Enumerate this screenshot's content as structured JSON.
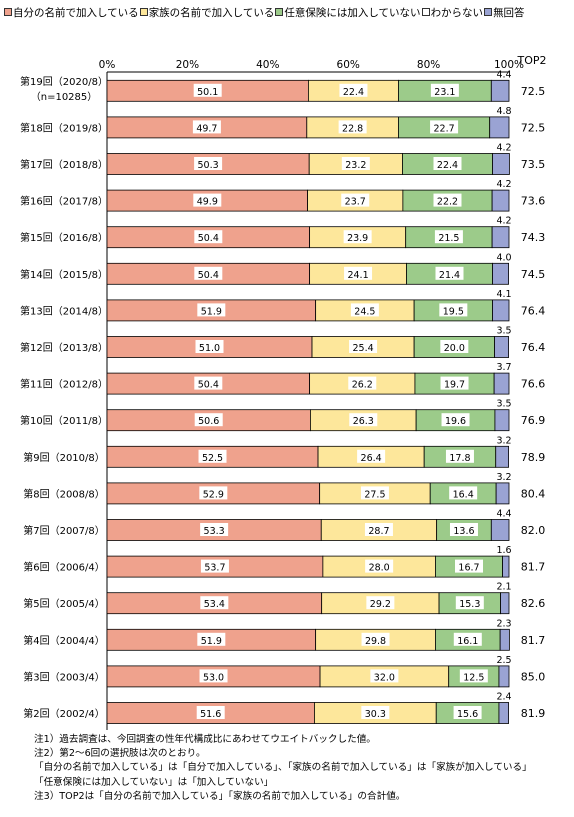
{
  "legend": [
    {
      "label": "自分の名前で加入している",
      "color": "#EFA28D"
    },
    {
      "label": "家族の名前で加入している",
      "color": "#FDE79B"
    },
    {
      "label": "任意保険には加入していない",
      "color": "#9CCB8A"
    },
    {
      "label": "わからない",
      "color": "#FFFFFF"
    },
    {
      "label": "無回答",
      "color": "#9AA3D3"
    }
  ],
  "chart_data": {
    "type": "bar",
    "orientation": "horizontal",
    "stacked": true,
    "x_ticks": [
      "0%",
      "20%",
      "40%",
      "60%",
      "80%",
      "100%"
    ],
    "xlim": [
      0,
      100
    ],
    "top2_header": "TOP2",
    "series_names": [
      "自分の名前で加入している",
      "家族の名前で加入している",
      "任意保険には加入していない",
      "わからない",
      "無回答"
    ],
    "rows": [
      {
        "label": "第19回（2020/8）",
        "sublabel": "（n=10285）",
        "values": [
          50.1,
          22.4,
          23.1,
          0.0,
          4.4
        ],
        "labels": [
          "50.1",
          "22.4",
          "23.1",
          "",
          "4.4"
        ],
        "top2": "72.5"
      },
      {
        "label": "第18回（2019/8）",
        "values": [
          49.7,
          22.8,
          22.7,
          0.0,
          4.8
        ],
        "labels": [
          "49.7",
          "22.8",
          "22.7",
          "",
          "4.8"
        ],
        "top2": "72.5"
      },
      {
        "label": "第17回（2018/8）",
        "values": [
          50.3,
          23.2,
          22.4,
          0.0,
          4.2
        ],
        "labels": [
          "50.3",
          "23.2",
          "22.4",
          "",
          "4.2"
        ],
        "top2": "73.5"
      },
      {
        "label": "第16回（2017/8）",
        "values": [
          49.9,
          23.7,
          22.2,
          0.0,
          4.2
        ],
        "labels": [
          "49.9",
          "23.7",
          "22.2",
          "",
          "4.2"
        ],
        "top2": "73.6"
      },
      {
        "label": "第15回（2016/8）",
        "values": [
          50.4,
          23.9,
          21.5,
          0.0,
          4.2
        ],
        "labels": [
          "50.4",
          "23.9",
          "21.5",
          "",
          "4.2"
        ],
        "top2": "74.3"
      },
      {
        "label": "第14回（2015/8）",
        "values": [
          50.4,
          24.1,
          21.4,
          0.0,
          4.0
        ],
        "labels": [
          "50.4",
          "24.1",
          "21.4",
          "",
          "4.0"
        ],
        "top2": "74.5"
      },
      {
        "label": "第13回（2014/8）",
        "values": [
          51.9,
          24.5,
          19.5,
          0.0,
          4.1
        ],
        "labels": [
          "51.9",
          "24.5",
          "19.5",
          "",
          "4.1"
        ],
        "top2": "76.4"
      },
      {
        "label": "第12回（2013/8）",
        "values": [
          51.0,
          25.4,
          20.0,
          0.0,
          3.5
        ],
        "labels": [
          "51.0",
          "25.4",
          "20.0",
          "",
          "3.5"
        ],
        "top2": "76.4"
      },
      {
        "label": "第11回（2012/8）",
        "values": [
          50.4,
          26.2,
          19.7,
          0.0,
          3.7
        ],
        "labels": [
          "50.4",
          "26.2",
          "19.7",
          "",
          "3.7"
        ],
        "top2": "76.6"
      },
      {
        "label": "第10回（2011/8）",
        "values": [
          50.6,
          26.3,
          19.6,
          0.0,
          3.5
        ],
        "labels": [
          "50.6",
          "26.3",
          "19.6",
          "",
          "3.5"
        ],
        "top2": "76.9"
      },
      {
        "label": "第9回（2010/8）",
        "values": [
          52.5,
          26.4,
          17.8,
          0.0,
          3.2
        ],
        "labels": [
          "52.5",
          "26.4",
          "17.8",
          "",
          "3.2"
        ],
        "top2": "78.9"
      },
      {
        "label": "第8回（2008/8）",
        "values": [
          52.9,
          27.5,
          16.4,
          0.0,
          3.2
        ],
        "labels": [
          "52.9",
          "27.5",
          "16.4",
          "",
          "3.2"
        ],
        "top2": "80.4"
      },
      {
        "label": "第7回（2007/8）",
        "values": [
          53.3,
          28.7,
          13.6,
          0.0,
          4.4
        ],
        "labels": [
          "53.3",
          "28.7",
          "13.6",
          "",
          "4.4"
        ],
        "top2": "82.0"
      },
      {
        "label": "第6回（2006/4）",
        "values": [
          53.7,
          28.0,
          16.7,
          0.0,
          1.6
        ],
        "labels": [
          "53.7",
          "28.0",
          "16.7",
          "",
          "1.6"
        ],
        "top2": "81.7"
      },
      {
        "label": "第5回（2005/4）",
        "values": [
          53.4,
          29.2,
          15.3,
          0.0,
          2.1
        ],
        "labels": [
          "53.4",
          "29.2",
          "15.3",
          "",
          "2.1"
        ],
        "top2": "82.6"
      },
      {
        "label": "第4回（2004/4）",
        "values": [
          51.9,
          29.8,
          16.1,
          0.0,
          2.3
        ],
        "labels": [
          "51.9",
          "29.8",
          "16.1",
          "",
          "2.3"
        ],
        "top2": "81.7"
      },
      {
        "label": "第3回（2003/4）",
        "values": [
          53.0,
          32.0,
          12.5,
          0.0,
          2.5
        ],
        "labels": [
          "53.0",
          "32.0",
          "12.5",
          "",
          "2.5"
        ],
        "top2": "85.0"
      },
      {
        "label": "第2回（2002/4）",
        "values": [
          51.6,
          30.3,
          15.6,
          0.0,
          2.4
        ],
        "labels": [
          "51.6",
          "30.3",
          "15.6",
          "",
          "2.4"
        ],
        "top2": "81.9"
      }
    ]
  },
  "notes": [
    "注1）過去調査は、今回調査の性年代構成比にあわせてウエイトバックした値。",
    "注2）第2～6回の選択肢は次のとおり。",
    "「自分の名前で加入している」は「自分で加入している」、「家族の名前で加入している」は「家族が加入している」",
    "「任意保険には加入していない」は「加入していない」",
    "注3）TOP2は「自分の名前で加入している」「家族の名前で加入している」の合計値。"
  ]
}
